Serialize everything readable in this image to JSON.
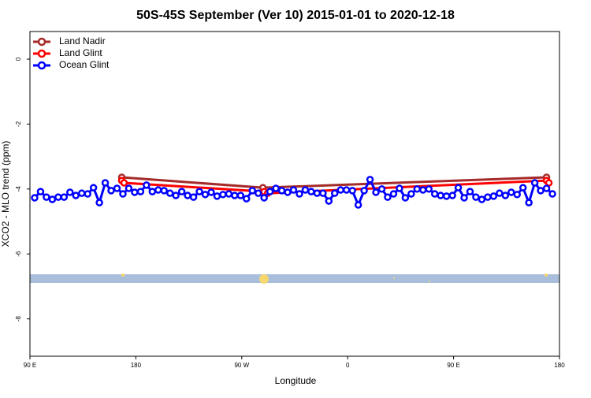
{
  "chart_data": {
    "type": "line",
    "title": "50S-45S September (Ver 10)   2015-01-01 to 2020-12-18",
    "x_label": "Longitude",
    "y_label": "XCO2 - MLO trend (ppm)",
    "xlim": [
      90,
      540
    ],
    "xticks": [
      {
        "value": 90,
        "label": "90 E"
      },
      180,
      {
        "value": 270,
        "label": "90 W"
      },
      {
        "value": 360,
        "label": "0"
      },
      {
        "value": 450,
        "label": "90 E"
      },
      {
        "value": 540,
        "label": "180"
      }
    ],
    "ylim": [
      -9.15,
      0.85
    ],
    "yticks": [
      0,
      -2,
      -4,
      -6,
      -8
    ],
    "legend": "top-left",
    "series": [
      {
        "name": "Land Nadir",
        "color": "#a52a2a",
        "x": [
          168,
          288,
          529
        ],
        "values": [
          -3.64,
          -3.96,
          -3.64
        ]
      },
      {
        "name": "Land Glint",
        "color": "#ff0000",
        "x": [
          168,
          170,
          289,
          292,
          529,
          531
        ],
        "values": [
          -3.74,
          -3.81,
          -4.08,
          -4.13,
          -3.74,
          -3.81
        ]
      },
      {
        "name": "Ocean Glint",
        "color": "#0000ff",
        "x": [
          94,
          99,
          104,
          109,
          114,
          119,
          124,
          129,
          134,
          139,
          144,
          149,
          154,
          159,
          164,
          169,
          174,
          179,
          184,
          189,
          194,
          199,
          204,
          209,
          214,
          219,
          224,
          229,
          234,
          239,
          244,
          249,
          254,
          259,
          264,
          269,
          274,
          279,
          284,
          289,
          294,
          299,
          304,
          309,
          314,
          319,
          324,
          329,
          334,
          339,
          344,
          349,
          354,
          359,
          364,
          369,
          374,
          379,
          384,
          389,
          394,
          399,
          404,
          409,
          414,
          419,
          424,
          429,
          434,
          439,
          444,
          449,
          454,
          459,
          464,
          469,
          474,
          479,
          484,
          489,
          494,
          499,
          504,
          509,
          514,
          519,
          524,
          529,
          534
        ],
        "values": [
          -4.27,
          -4.08,
          -4.25,
          -4.32,
          -4.25,
          -4.25,
          -4.1,
          -4.2,
          -4.13,
          -4.15,
          -3.96,
          -4.42,
          -3.81,
          -4.05,
          -3.98,
          -4.15,
          -3.98,
          -4.1,
          -4.08,
          -3.88,
          -4.08,
          -4.03,
          -4.05,
          -4.13,
          -4.2,
          -4.08,
          -4.2,
          -4.25,
          -4.08,
          -4.17,
          -4.1,
          -4.22,
          -4.17,
          -4.15,
          -4.2,
          -4.2,
          -4.3,
          -4.05,
          -4.13,
          -4.27,
          -4.08,
          -3.98,
          -4.05,
          -4.1,
          -4.03,
          -4.15,
          -4.03,
          -4.08,
          -4.13,
          -4.13,
          -4.37,
          -4.13,
          -4.03,
          -4.03,
          -4.05,
          -4.49,
          -4.05,
          -3.71,
          -4.1,
          -4.0,
          -4.25,
          -4.15,
          -3.98,
          -4.27,
          -4.15,
          -4.0,
          -4.03,
          -4.0,
          -4.15,
          -4.2,
          -4.22,
          -4.2,
          -3.96,
          -4.27,
          -4.08,
          -4.25,
          -4.32,
          -4.25,
          -4.22,
          -4.13,
          -4.2,
          -4.1,
          -4.17,
          -3.96,
          -4.42,
          -3.81,
          -4.05,
          -3.98,
          -4.15
        ]
      }
    ]
  }
}
